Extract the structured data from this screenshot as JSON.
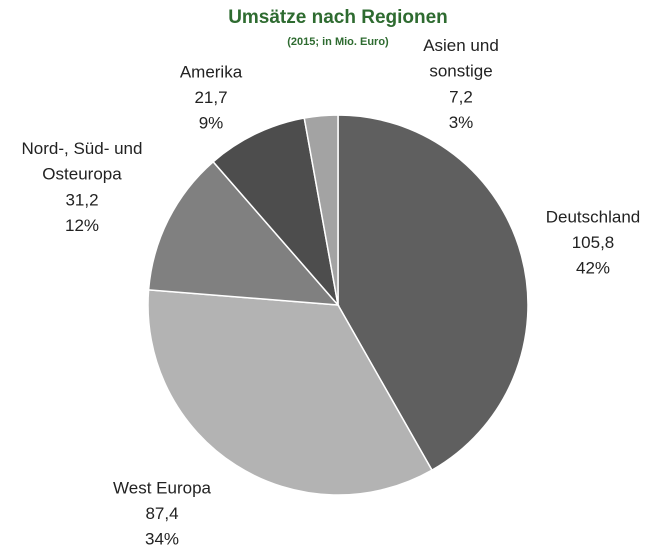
{
  "chart_data": {
    "type": "pie",
    "title": "Umsätze nach Regionen",
    "subtitle": "(2015; in Mio. Euro)",
    "categories": [
      "Deutschland",
      "West Europa",
      "Nord-, Süd- und Osteuropa",
      "Amerika",
      "Asien und sonstige"
    ],
    "values": [
      105.8,
      87.4,
      31.2,
      21.7,
      7.2
    ],
    "value_labels": [
      "105,8",
      "87,4",
      "31,2",
      "21,7",
      "7,2"
    ],
    "percentages": [
      42,
      34,
      12,
      9,
      3
    ],
    "percentage_labels": [
      "42%",
      "34%",
      "12%",
      "9%",
      "3%"
    ],
    "colors": [
      "#5f5f5f",
      "#b3b3b3",
      "#808080",
      "#4d4d4d",
      "#a3a3a3"
    ]
  }
}
